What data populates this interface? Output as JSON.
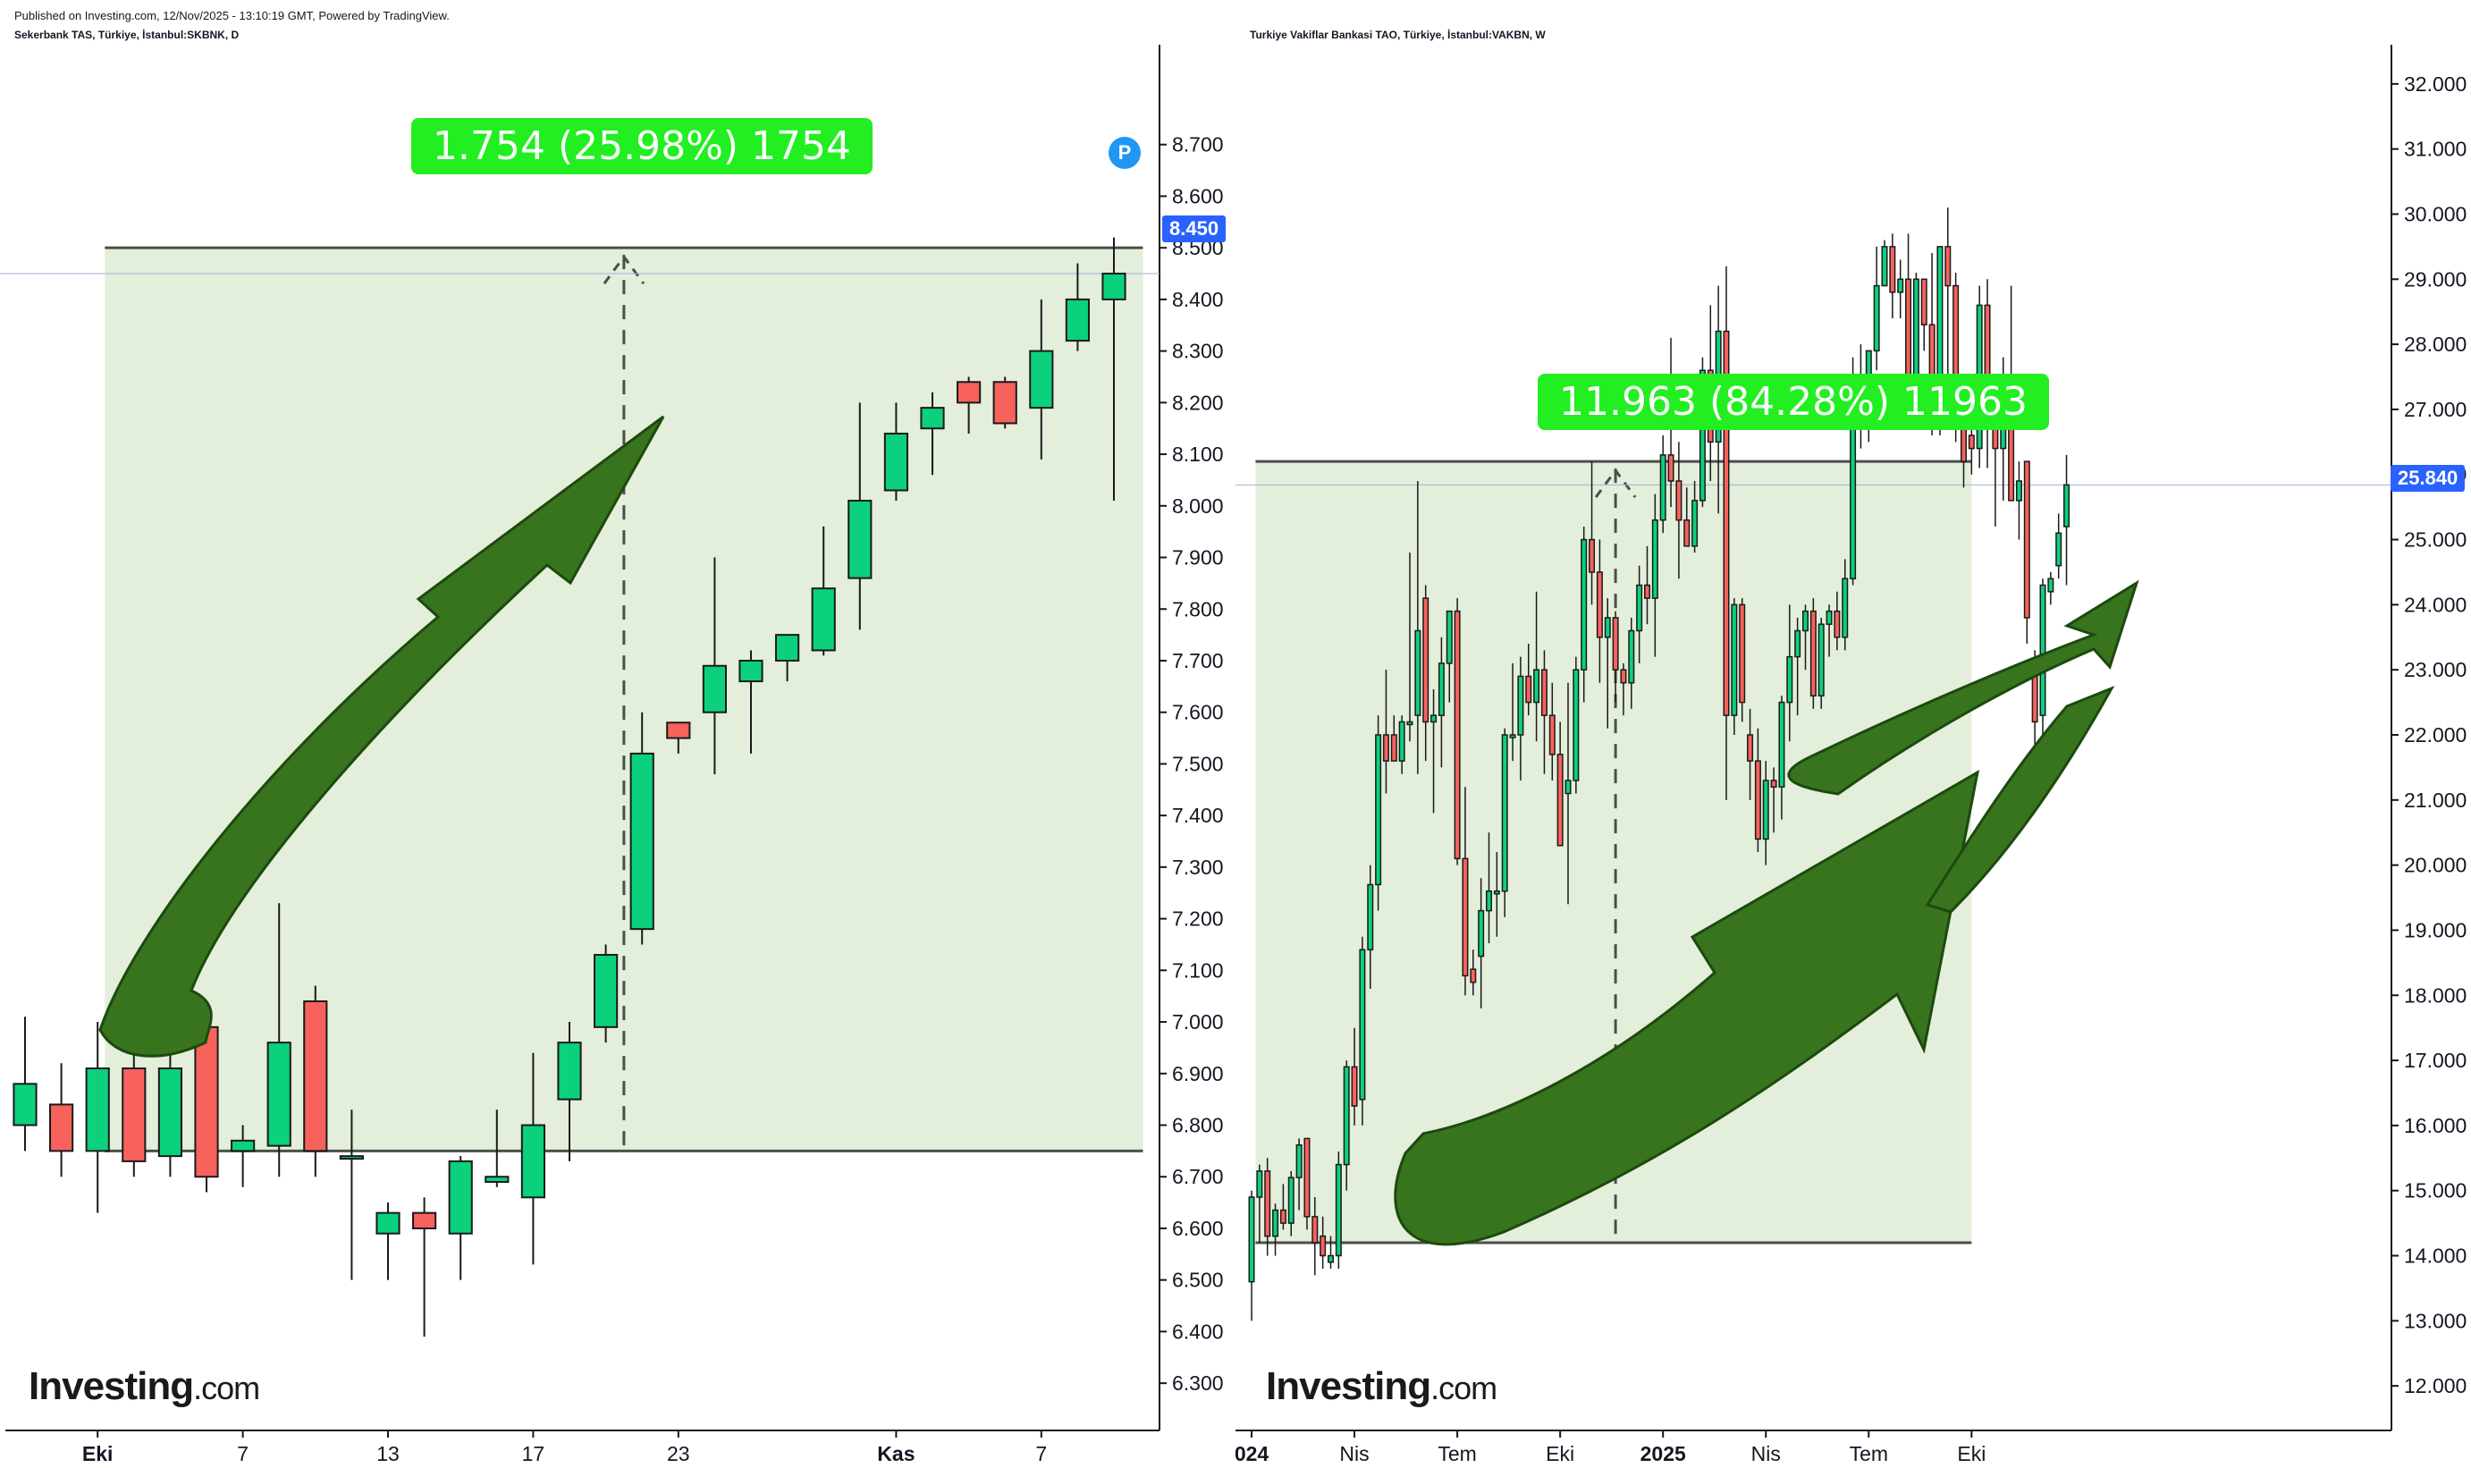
{
  "published": "Published on Investing.com, 12/Nov/2025 - 13:10:19 GMT, Powered by TradingView.",
  "watermark": {
    "brand": "Investing",
    "suffix": ".com"
  },
  "colors": {
    "up": "#0bd17d",
    "down": "#f8625c",
    "range_fill": "#e3eedb",
    "arrow": "#38741d",
    "measure_label_bg": "#22ee22",
    "price_tag": "#2962ff"
  },
  "left": {
    "title": "Sekerbank TAS, Türkiye, İstanbul:SKBNK, D",
    "measure_label": "1.754 (25.98%) 1754",
    "last_price": "8.450",
    "badge": "P",
    "y_ticks": [
      "6.300",
      "6.400",
      "6.500",
      "6.600",
      "6.700",
      "6.800",
      "6.900",
      "7.000",
      "7.100",
      "7.200",
      "7.300",
      "7.400",
      "7.500",
      "7.600",
      "7.700",
      "7.800",
      "7.900",
      "8.000",
      "8.100",
      "8.200",
      "8.300",
      "8.400",
      "8.500",
      "8.600",
      "8.700"
    ],
    "x_ticks": [
      {
        "label": "Eki",
        "bold": true,
        "index": 2
      },
      {
        "label": "7",
        "bold": false,
        "index": 6
      },
      {
        "label": "13",
        "bold": false,
        "index": 10
      },
      {
        "label": "17",
        "bold": false,
        "index": 14
      },
      {
        "label": "23",
        "bold": false,
        "index": 18
      },
      {
        "label": "Kas",
        "bold": true,
        "index": 24
      },
      {
        "label": "7",
        "bold": false,
        "index": 28
      }
    ],
    "range": {
      "low": 6.75,
      "high": 8.5,
      "start_index": 2.2,
      "end_index": 30.8,
      "mid_index": 16.5
    }
  },
  "right": {
    "title": "Turkiye Vakiflar Bankasi TAO, Türkiye, İstanbul:VAKBN, W",
    "measure_label": "11.963 (84.28%) 11963",
    "last_price": "25.840",
    "y_ticks": [
      "12.000",
      "13.000",
      "14.000",
      "15.000",
      "16.000",
      "17.000",
      "18.000",
      "19.000",
      "20.000",
      "21.000",
      "22.000",
      "23.000",
      "24.000",
      "25.000",
      "26.000",
      "27.000",
      "28.000",
      "29.000",
      "30.000",
      "31.000",
      "32.000"
    ],
    "x_ticks": [
      {
        "label": "024",
        "bold": true,
        "index": 0
      },
      {
        "label": "Nis",
        "bold": false,
        "index": 13
      },
      {
        "label": "Tem",
        "bold": false,
        "index": 26
      },
      {
        "label": "Eki",
        "bold": false,
        "index": 39
      },
      {
        "label": "2025",
        "bold": true,
        "index": 52
      },
      {
        "label": "Nis",
        "bold": false,
        "index": 65
      },
      {
        "label": "Tem",
        "bold": false,
        "index": 78
      },
      {
        "label": "Eki",
        "bold": false,
        "index": 91
      }
    ],
    "range": {
      "low": 14.2,
      "high": 26.2,
      "start_index": 0.5,
      "end_index": 91,
      "mid_index": 46
    }
  },
  "chart_data": [
    {
      "type": "candlestick",
      "title": "Sekerbank TAS, Türkiye, İstanbul:SKBNK, D",
      "ylim": [
        6.25,
        8.8
      ],
      "candles": [
        {
          "o": 6.8,
          "h": 7.01,
          "l": 6.75,
          "c": 6.88
        },
        {
          "o": 6.84,
          "h": 6.92,
          "l": 6.7,
          "c": 6.75
        },
        {
          "o": 6.75,
          "h": 7.0,
          "l": 6.63,
          "c": 6.91
        },
        {
          "o": 6.91,
          "h": 6.97,
          "l": 6.7,
          "c": 6.73
        },
        {
          "o": 6.74,
          "h": 7.07,
          "l": 6.7,
          "c": 6.91
        },
        {
          "o": 6.99,
          "h": 7.0,
          "l": 6.67,
          "c": 6.7
        },
        {
          "o": 6.75,
          "h": 6.8,
          "l": 6.68,
          "c": 6.77
        },
        {
          "o": 6.76,
          "h": 7.23,
          "l": 6.7,
          "c": 6.96
        },
        {
          "o": 7.04,
          "h": 7.07,
          "l": 6.7,
          "c": 6.75
        },
        {
          "o": 6.74,
          "h": 6.83,
          "l": 6.5,
          "c": 6.74
        },
        {
          "o": 6.59,
          "h": 6.65,
          "l": 6.5,
          "c": 6.63
        },
        {
          "o": 6.63,
          "h": 6.66,
          "l": 6.39,
          "c": 6.6
        },
        {
          "o": 6.59,
          "h": 6.74,
          "l": 6.5,
          "c": 6.73
        },
        {
          "o": 6.69,
          "h": 6.83,
          "l": 6.68,
          "c": 6.7
        },
        {
          "o": 6.66,
          "h": 6.94,
          "l": 6.53,
          "c": 6.8
        },
        {
          "o": 6.85,
          "h": 7.0,
          "l": 6.73,
          "c": 6.96
        },
        {
          "o": 6.99,
          "h": 7.15,
          "l": 6.96,
          "c": 7.13
        },
        {
          "o": 7.18,
          "h": 7.6,
          "l": 7.15,
          "c": 7.52
        },
        {
          "o": 7.58,
          "h": 7.58,
          "l": 7.52,
          "c": 7.55
        },
        {
          "o": 7.6,
          "h": 7.9,
          "l": 7.48,
          "c": 7.69
        },
        {
          "o": 7.66,
          "h": 7.72,
          "l": 7.52,
          "c": 7.7
        },
        {
          "o": 7.7,
          "h": 7.75,
          "l": 7.66,
          "c": 7.75
        },
        {
          "o": 7.72,
          "h": 7.96,
          "l": 7.71,
          "c": 7.84
        },
        {
          "o": 7.86,
          "h": 8.2,
          "l": 7.76,
          "c": 8.01
        },
        {
          "o": 8.03,
          "h": 8.2,
          "l": 8.01,
          "c": 8.14
        },
        {
          "o": 8.15,
          "h": 8.22,
          "l": 8.06,
          "c": 8.19
        },
        {
          "o": 8.24,
          "h": 8.25,
          "l": 8.14,
          "c": 8.2
        },
        {
          "o": 8.24,
          "h": 8.25,
          "l": 8.15,
          "c": 8.16
        },
        {
          "o": 8.19,
          "h": 8.4,
          "l": 8.09,
          "c": 8.3
        },
        {
          "o": 8.32,
          "h": 8.47,
          "l": 8.3,
          "c": 8.4
        },
        {
          "o": 8.4,
          "h": 8.52,
          "l": 8.01,
          "c": 8.45
        }
      ]
    },
    {
      "type": "candlestick",
      "title": "Turkiye Vakiflar Bankasi TAO, Türkiye, İstanbul:VAKBN, W",
      "ylim": [
        11.7,
        32.3
      ],
      "candles": [
        {
          "o": 13.6,
          "h": 15.0,
          "l": 13.0,
          "c": 14.9
        },
        {
          "o": 14.9,
          "h": 15.4,
          "l": 14.2,
          "c": 15.3
        },
        {
          "o": 15.3,
          "h": 15.5,
          "l": 14.0,
          "c": 14.3
        },
        {
          "o": 14.3,
          "h": 14.8,
          "l": 14.0,
          "c": 14.7
        },
        {
          "o": 14.7,
          "h": 15.1,
          "l": 14.4,
          "c": 14.5
        },
        {
          "o": 14.5,
          "h": 15.3,
          "l": 14.3,
          "c": 15.2
        },
        {
          "o": 15.2,
          "h": 15.8,
          "l": 14.7,
          "c": 15.7
        },
        {
          "o": 15.8,
          "h": 15.8,
          "l": 14.4,
          "c": 14.6
        },
        {
          "o": 14.6,
          "h": 14.9,
          "l": 13.7,
          "c": 14.2
        },
        {
          "o": 14.3,
          "h": 14.6,
          "l": 13.8,
          "c": 14.0
        },
        {
          "o": 13.9,
          "h": 14.3,
          "l": 13.8,
          "c": 14.0
        },
        {
          "o": 14.0,
          "h": 15.6,
          "l": 13.8,
          "c": 15.4
        },
        {
          "o": 15.4,
          "h": 17.0,
          "l": 15.0,
          "c": 16.9
        },
        {
          "o": 16.9,
          "h": 17.5,
          "l": 16.0,
          "c": 16.3
        },
        {
          "o": 16.4,
          "h": 18.9,
          "l": 16.0,
          "c": 18.7
        },
        {
          "o": 18.7,
          "h": 20.0,
          "l": 18.1,
          "c": 19.7
        },
        {
          "o": 19.7,
          "h": 22.3,
          "l": 19.3,
          "c": 22.0
        },
        {
          "o": 22.0,
          "h": 23.0,
          "l": 21.1,
          "c": 21.6
        },
        {
          "o": 22.0,
          "h": 22.3,
          "l": 21.6,
          "c": 21.6
        },
        {
          "o": 21.6,
          "h": 22.3,
          "l": 21.4,
          "c": 22.2
        },
        {
          "o": 22.2,
          "h": 24.8,
          "l": 21.9,
          "c": 22.2
        },
        {
          "o": 22.3,
          "h": 25.9,
          "l": 21.4,
          "c": 23.6
        },
        {
          "o": 24.1,
          "h": 24.3,
          "l": 21.6,
          "c": 22.2
        },
        {
          "o": 22.2,
          "h": 22.7,
          "l": 20.8,
          "c": 22.3
        },
        {
          "o": 22.3,
          "h": 23.5,
          "l": 21.5,
          "c": 23.1
        },
        {
          "o": 23.1,
          "h": 23.9,
          "l": 22.5,
          "c": 23.9
        },
        {
          "o": 23.9,
          "h": 24.1,
          "l": 20.0,
          "c": 20.1
        },
        {
          "o": 20.1,
          "h": 21.2,
          "l": 18.0,
          "c": 18.3
        },
        {
          "o": 18.4,
          "h": 18.7,
          "l": 18.0,
          "c": 18.2
        },
        {
          "o": 18.6,
          "h": 19.8,
          "l": 17.8,
          "c": 19.3
        },
        {
          "o": 19.3,
          "h": 20.5,
          "l": 18.8,
          "c": 19.6
        },
        {
          "o": 19.6,
          "h": 20.2,
          "l": 18.9,
          "c": 19.6
        },
        {
          "o": 19.6,
          "h": 22.1,
          "l": 19.2,
          "c": 22.0
        },
        {
          "o": 22.0,
          "h": 23.1,
          "l": 21.6,
          "c": 22.0
        },
        {
          "o": 22.0,
          "h": 23.2,
          "l": 21.3,
          "c": 22.9
        },
        {
          "o": 22.9,
          "h": 23.4,
          "l": 22.3,
          "c": 22.5
        },
        {
          "o": 22.5,
          "h": 24.2,
          "l": 21.9,
          "c": 23.0
        },
        {
          "o": 23.0,
          "h": 23.3,
          "l": 21.4,
          "c": 22.3
        },
        {
          "o": 22.3,
          "h": 22.8,
          "l": 21.3,
          "c": 21.7
        },
        {
          "o": 21.7,
          "h": 22.2,
          "l": 20.3,
          "c": 20.3
        },
        {
          "o": 21.1,
          "h": 22.8,
          "l": 19.4,
          "c": 21.3
        },
        {
          "o": 21.3,
          "h": 23.2,
          "l": 21.1,
          "c": 23.0
        },
        {
          "o": 23.0,
          "h": 25.2,
          "l": 22.5,
          "c": 25.0
        },
        {
          "o": 25.0,
          "h": 26.2,
          "l": 24.0,
          "c": 24.5
        },
        {
          "o": 24.5,
          "h": 25.0,
          "l": 22.8,
          "c": 23.5
        },
        {
          "o": 23.5,
          "h": 24.1,
          "l": 22.1,
          "c": 23.8
        },
        {
          "o": 23.8,
          "h": 23.9,
          "l": 22.5,
          "c": 23.0
        },
        {
          "o": 23.0,
          "h": 23.1,
          "l": 22.3,
          "c": 22.8
        },
        {
          "o": 22.8,
          "h": 23.8,
          "l": 22.4,
          "c": 23.6
        },
        {
          "o": 23.6,
          "h": 24.6,
          "l": 23.1,
          "c": 24.3
        },
        {
          "o": 24.3,
          "h": 24.9,
          "l": 23.7,
          "c": 24.1
        },
        {
          "o": 24.1,
          "h": 25.7,
          "l": 23.2,
          "c": 25.3
        },
        {
          "o": 25.3,
          "h": 26.6,
          "l": 25.1,
          "c": 26.3
        },
        {
          "o": 26.3,
          "h": 28.1,
          "l": 25.5,
          "c": 25.9
        },
        {
          "o": 25.9,
          "h": 26.5,
          "l": 24.4,
          "c": 25.3
        },
        {
          "o": 25.3,
          "h": 25.8,
          "l": 24.9,
          "c": 24.9
        },
        {
          "o": 24.9,
          "h": 25.9,
          "l": 24.8,
          "c": 25.6
        },
        {
          "o": 25.6,
          "h": 27.8,
          "l": 25.5,
          "c": 27.6
        },
        {
          "o": 27.6,
          "h": 28.6,
          "l": 25.9,
          "c": 26.5
        },
        {
          "o": 26.5,
          "h": 28.9,
          "l": 25.4,
          "c": 28.2
        },
        {
          "o": 28.2,
          "h": 29.2,
          "l": 21.0,
          "c": 22.3
        },
        {
          "o": 22.3,
          "h": 24.1,
          "l": 22.0,
          "c": 24.0
        },
        {
          "o": 24.0,
          "h": 24.1,
          "l": 22.2,
          "c": 22.5
        },
        {
          "o": 22.0,
          "h": 22.4,
          "l": 21.0,
          "c": 21.6
        },
        {
          "o": 21.6,
          "h": 22.1,
          "l": 20.2,
          "c": 20.4
        },
        {
          "o": 20.4,
          "h": 21.6,
          "l": 20.0,
          "c": 21.3
        },
        {
          "o": 21.3,
          "h": 21.5,
          "l": 20.5,
          "c": 21.2
        },
        {
          "o": 21.2,
          "h": 22.6,
          "l": 20.7,
          "c": 22.5
        },
        {
          "o": 22.5,
          "h": 24.0,
          "l": 21.9,
          "c": 23.2
        },
        {
          "o": 23.2,
          "h": 23.8,
          "l": 22.3,
          "c": 23.6
        },
        {
          "o": 23.6,
          "h": 24.0,
          "l": 23.0,
          "c": 23.9
        },
        {
          "o": 23.9,
          "h": 24.1,
          "l": 22.4,
          "c": 22.6
        },
        {
          "o": 22.6,
          "h": 23.8,
          "l": 22.4,
          "c": 23.7
        },
        {
          "o": 23.7,
          "h": 24.0,
          "l": 23.2,
          "c": 23.9
        },
        {
          "o": 23.9,
          "h": 24.2,
          "l": 23.3,
          "c": 23.5
        },
        {
          "o": 23.5,
          "h": 24.7,
          "l": 23.3,
          "c": 24.4
        },
        {
          "o": 24.4,
          "h": 27.8,
          "l": 24.3,
          "c": 27.3
        },
        {
          "o": 27.3,
          "h": 28.0,
          "l": 26.4,
          "c": 26.8
        },
        {
          "o": 26.8,
          "h": 27.9,
          "l": 26.5,
          "c": 27.9
        },
        {
          "o": 27.9,
          "h": 29.5,
          "l": 27.6,
          "c": 28.9
        },
        {
          "o": 28.9,
          "h": 29.6,
          "l": 29.0,
          "c": 29.5
        },
        {
          "o": 29.5,
          "h": 29.7,
          "l": 28.4,
          "c": 28.8
        },
        {
          "o": 28.8,
          "h": 29.3,
          "l": 28.4,
          "c": 29.0
        },
        {
          "o": 29.0,
          "h": 29.7,
          "l": 27.0,
          "c": 27.3
        },
        {
          "o": 27.3,
          "h": 29.1,
          "l": 27.0,
          "c": 29.0
        },
        {
          "o": 29.0,
          "h": 29.0,
          "l": 27.9,
          "c": 28.3
        },
        {
          "o": 28.3,
          "h": 29.4,
          "l": 26.6,
          "c": 26.7
        },
        {
          "o": 26.7,
          "h": 29.5,
          "l": 26.6,
          "c": 29.5
        },
        {
          "o": 29.5,
          "h": 30.1,
          "l": 27.5,
          "c": 28.9
        },
        {
          "o": 28.9,
          "h": 29.1,
          "l": 26.5,
          "c": 26.9
        },
        {
          "o": 26.9,
          "h": 27.3,
          "l": 25.8,
          "c": 26.2
        },
        {
          "o": 26.6,
          "h": 27.1,
          "l": 26.0,
          "c": 26.4
        },
        {
          "o": 26.4,
          "h": 28.9,
          "l": 26.1,
          "c": 28.6
        },
        {
          "o": 28.6,
          "h": 29.0,
          "l": 26.1,
          "c": 26.7
        },
        {
          "o": 26.7,
          "h": 27.3,
          "l": 25.2,
          "c": 26.4
        },
        {
          "o": 26.4,
          "h": 27.8,
          "l": 25.6,
          "c": 27.3
        },
        {
          "o": 27.3,
          "h": 28.9,
          "l": 25.6,
          "c": 25.6
        },
        {
          "o": 25.6,
          "h": 26.2,
          "l": 25.0,
          "c": 25.9
        },
        {
          "o": 26.2,
          "h": 26.2,
          "l": 23.4,
          "c": 23.8
        },
        {
          "o": 23.0,
          "h": 23.3,
          "l": 21.4,
          "c": 22.2
        },
        {
          "o": 22.3,
          "h": 24.4,
          "l": 22.0,
          "c": 24.3
        },
        {
          "o": 24.2,
          "h": 24.5,
          "l": 24.0,
          "c": 24.4
        },
        {
          "o": 24.6,
          "h": 25.4,
          "l": 24.4,
          "c": 25.1
        },
        {
          "o": 25.2,
          "h": 26.3,
          "l": 24.3,
          "c": 25.84
        }
      ]
    }
  ]
}
